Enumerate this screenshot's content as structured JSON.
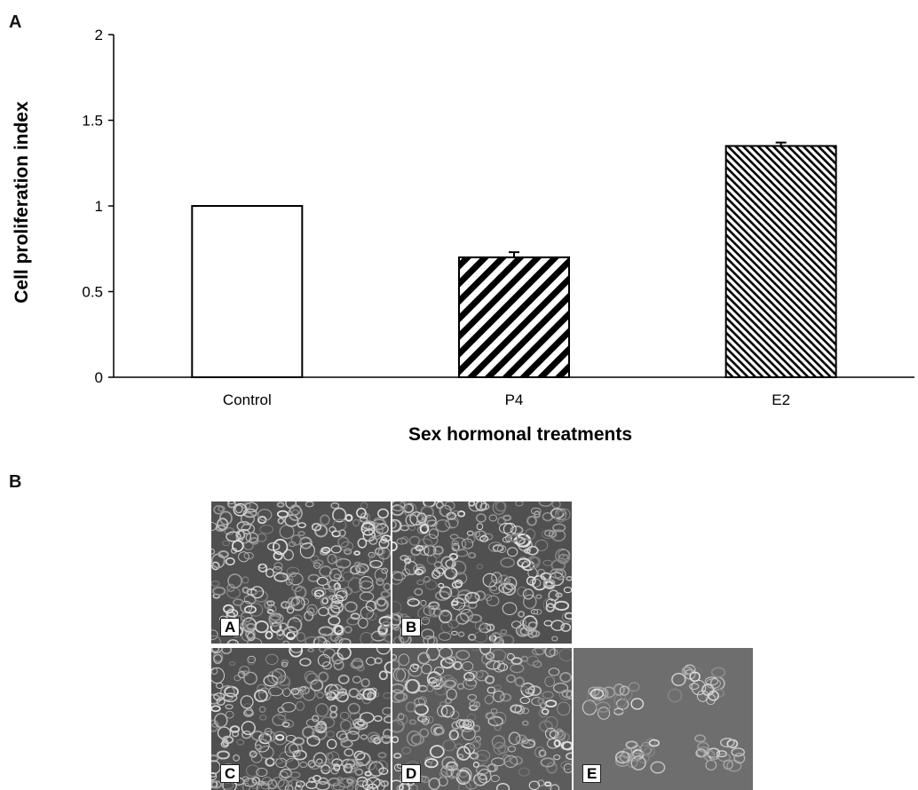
{
  "figure": {
    "panel_a_letter": "A",
    "panel_b_letter": "B"
  },
  "chart_data": {
    "type": "bar",
    "title": "",
    "xlabel": "Sex hormonal treatments",
    "ylabel": "Cell proliferation index",
    "categories": [
      "Control",
      "P4",
      "E2"
    ],
    "values": [
      1.0,
      0.7,
      1.35
    ],
    "errors": [
      0.0,
      0.03,
      0.02
    ],
    "bar_styles": [
      "open",
      "wide-diagonal-hatch",
      "dense-diagonal-hatch"
    ],
    "ylim": [
      0,
      2
    ],
    "yticks": [
      0,
      0.5,
      1,
      1.5,
      2
    ],
    "ytick_labels": [
      "0",
      "0.5",
      "1",
      "1.5",
      "2"
    ],
    "grid": false,
    "legend": "none"
  },
  "micrographs": {
    "tiles": [
      {
        "label": "A",
        "tone": "dense"
      },
      {
        "label": "B",
        "tone": "dense"
      },
      {
        "label": "C",
        "tone": "medium"
      },
      {
        "label": "D",
        "tone": "medium-bright"
      },
      {
        "label": "E",
        "tone": "sparse-clusters"
      }
    ]
  }
}
